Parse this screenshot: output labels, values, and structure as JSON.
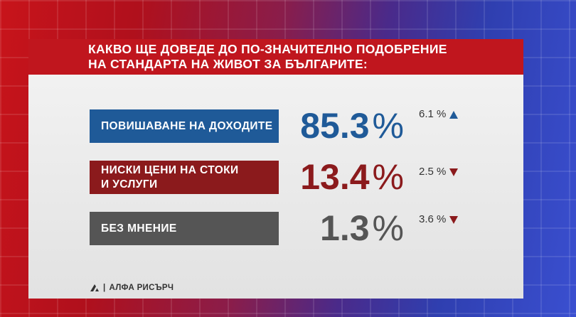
{
  "title": {
    "line1": "КАКВО ЩЕ ДОВЕДЕ ДО ПО-ЗНАЧИТЕЛНО ПОДОБРЕНИЕ",
    "line2": "НА СТАНДАРТА НА ЖИВОТ ЗА БЪЛГАРИТЕ:"
  },
  "colors": {
    "title_bg": "#c0161e",
    "row1": "#1f5a98",
    "row2": "#8b1a1c",
    "row3": "#555555"
  },
  "chart_data": {
    "type": "table",
    "rows": [
      {
        "label_lines": [
          "ПОВИШАВАНЕ НА ДОХОДИТЕ"
        ],
        "value": "85.3",
        "unit": "%",
        "change": "6.1 %",
        "trend": "up"
      },
      {
        "label_lines": [
          "НИСКИ ЦЕНИ НА СТОКИ",
          "И УСЛУГИ"
        ],
        "value": "13.4",
        "unit": "%",
        "change": "2.5 %",
        "trend": "down"
      },
      {
        "label_lines": [
          "БЕЗ МНЕНИЕ"
        ],
        "value": "1.3",
        "unit": "%",
        "change": "3.6 %",
        "trend": "down"
      }
    ]
  },
  "source": {
    "text": "АЛФА РИСЪРЧ",
    "icon": "alpha-research-logo-icon"
  }
}
